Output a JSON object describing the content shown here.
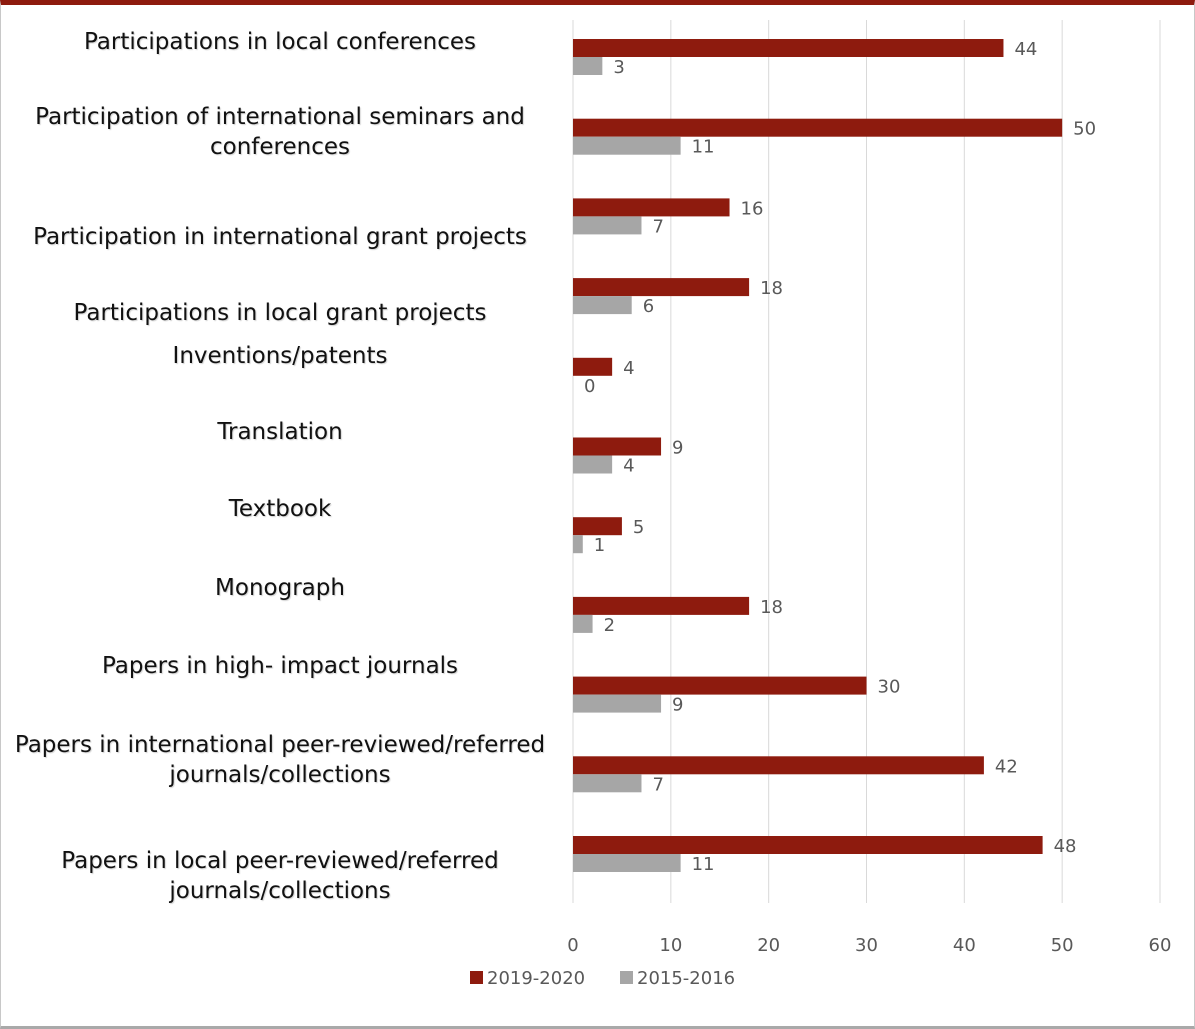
{
  "chart_data": {
    "type": "bar",
    "orientation": "horizontal",
    "categories": [
      "Participations in local conferences",
      "Participation of international seminars and conferences",
      "Participation in international grant projects",
      "Participations in local grant projects",
      "Inventions/patents",
      "Translation",
      "Textbook",
      "Monograph",
      "Papers in high- impact journals",
      "Papers in international peer-reviewed/referred journals/collections",
      "Papers in local peer-reviewed/referred journals/collections"
    ],
    "series": [
      {
        "name": "2019-2020",
        "color": "#8e1b0e",
        "values": [
          44,
          50,
          16,
          18,
          4,
          9,
          5,
          18,
          30,
          42,
          48
        ]
      },
      {
        "name": "2015-2016",
        "color": "#a6a6a6",
        "values": [
          3,
          11,
          7,
          6,
          0,
          4,
          1,
          2,
          9,
          7,
          11
        ]
      }
    ],
    "xlim": [
      0,
      60
    ],
    "xticks": [
      0,
      10,
      20,
      30,
      40,
      50,
      60
    ],
    "grid": true,
    "legend": "bottom",
    "data_labels": true
  }
}
